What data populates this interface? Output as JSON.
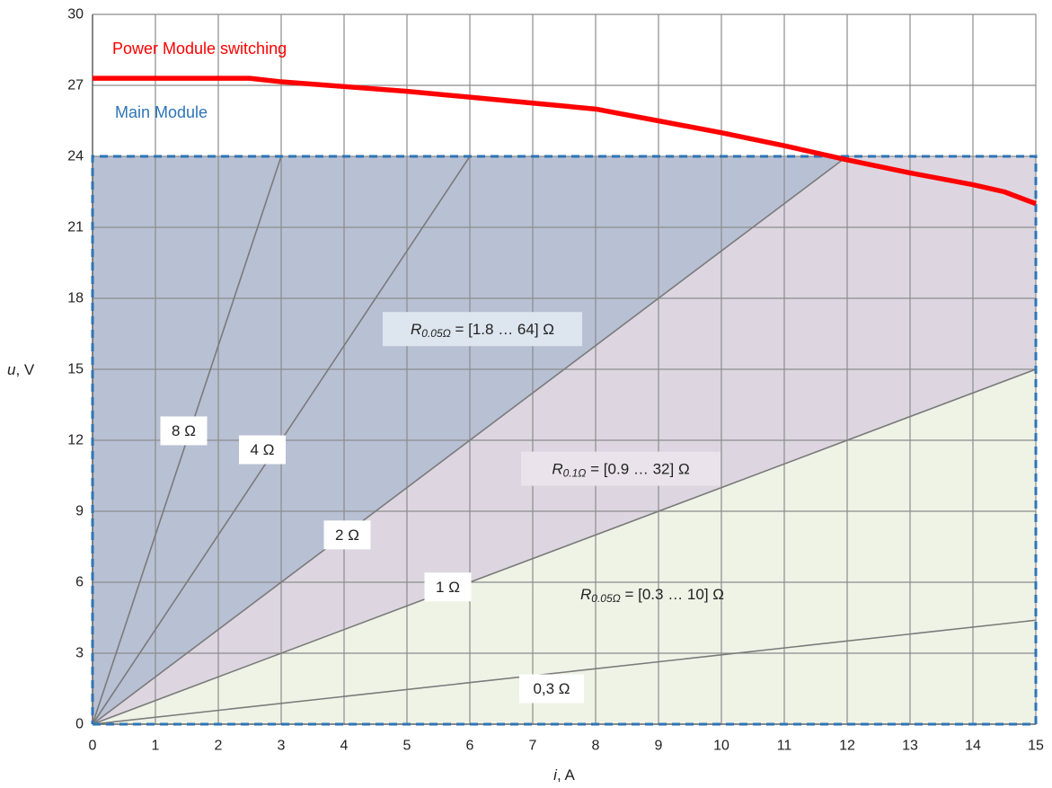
{
  "chart_data": {
    "type": "line",
    "title": "",
    "xlabel": {
      "var": "i",
      "unit": ", A"
    },
    "ylabel": {
      "var": "u",
      "unit": ", V"
    },
    "xlim": [
      0,
      15
    ],
    "ylim": [
      0,
      30
    ],
    "xticks": [
      0,
      1,
      2,
      3,
      4,
      5,
      6,
      7,
      8,
      9,
      10,
      11,
      12,
      13,
      14,
      15
    ],
    "yticks": [
      0,
      3,
      6,
      9,
      12,
      15,
      18,
      21,
      24,
      27,
      30
    ],
    "grid": true,
    "colors": {
      "power": "#ff0000",
      "main": "#2e75b6",
      "region_high": "#b8c0d4",
      "region_mid": "#ddd6e0",
      "region_low": "#eef3e6",
      "resistance_line": "#7a7a7a",
      "grid": "#8c8c8c"
    },
    "series": [
      {
        "name": "Power Module switching",
        "style": "solid-thick",
        "x": [
          0,
          2.5,
          3,
          4,
          5,
          6,
          7,
          8,
          9,
          10,
          11,
          12,
          13,
          14,
          14.5,
          15
        ],
        "y": [
          27.3,
          27.3,
          27.15,
          26.95,
          26.75,
          26.5,
          26.25,
          26.0,
          25.5,
          25.0,
          24.45,
          23.85,
          23.3,
          22.8,
          22.5,
          22.0
        ]
      },
      {
        "name": "Main Module",
        "style": "dashed-box",
        "x": [
          0,
          15,
          15,
          0,
          0
        ],
        "y": [
          0,
          0,
          24,
          24,
          0
        ]
      }
    ],
    "resistance_lines": [
      {
        "label": "8 Ω",
        "ohms": 8,
        "label_at": [
          1.45,
          12.4
        ]
      },
      {
        "label": "4 Ω",
        "ohms": 4,
        "label_at": [
          2.7,
          11.6
        ]
      },
      {
        "label": "2 Ω",
        "ohms": 2,
        "label_at": [
          4.05,
          8.0
        ]
      },
      {
        "label": "1 Ω",
        "ohms": 1,
        "label_at": [
          5.65,
          5.8
        ]
      },
      {
        "label": "0,3 Ω",
        "ohms": 0.293,
        "label_at": [
          7.3,
          1.5
        ]
      }
    ],
    "region_labels": [
      {
        "sym": "R",
        "sub": "0.05Ω",
        "text": " = [1.8 … 64] Ω",
        "at": [
          6.2,
          16.7
        ],
        "bg": "#dde5ef"
      },
      {
        "sym": "R",
        "sub": "0.1Ω",
        "text": " = [0.9 … 32] Ω",
        "at": [
          8.4,
          10.8
        ],
        "bg": "#ebe3ec"
      },
      {
        "sym": "R",
        "sub": "0.05Ω",
        "text": " = [0.3 … 10] Ω",
        "at": [
          8.9,
          5.5
        ],
        "bg": null
      }
    ]
  }
}
